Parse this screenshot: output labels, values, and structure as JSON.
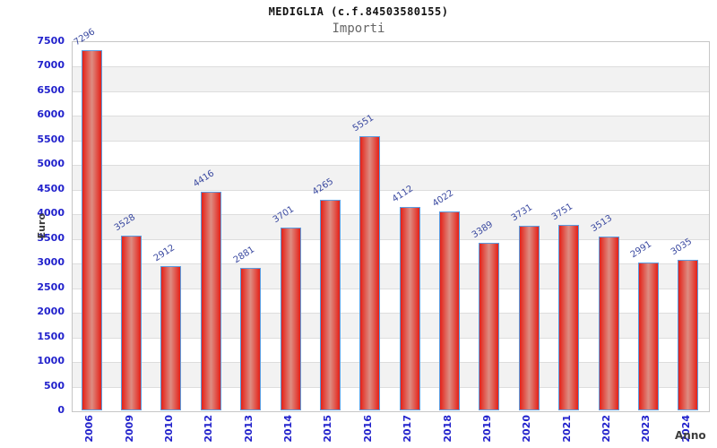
{
  "chart_data": {
    "type": "bar",
    "title": "MEDIGLIA (c.f.84503580155)",
    "subtitle": "Importi",
    "xlabel": "Anno",
    "ylabel": "Euro",
    "categories": [
      "2006",
      "2009",
      "2010",
      "2012",
      "2013",
      "2014",
      "2015",
      "2016",
      "2017",
      "2018",
      "2019",
      "2020",
      "2021",
      "2022",
      "2023",
      "2024"
    ],
    "values": [
      7296,
      3528,
      2912,
      4416,
      2881,
      3701,
      4265,
      5551,
      4112,
      4022,
      3389,
      3731,
      3751,
      3513,
      2991,
      3035
    ],
    "ylim": [
      0,
      7500
    ],
    "ytick_step": 500,
    "grid": true,
    "legend_position": "none",
    "band_colors": [
      "#ffffff",
      "#f2f2f2"
    ],
    "colors": {
      "bar_edge": "#e42118",
      "bar_center": "#dd8d82",
      "bar_border": "#5b9ce0",
      "tick_label": "#2222cc",
      "value_label": "#3a49a0",
      "gridline": "#dddddd",
      "plot_border": "#c6c6c6",
      "title": "#111111",
      "subtitle": "#666666",
      "axis_title": "#3d3d3d"
    }
  }
}
